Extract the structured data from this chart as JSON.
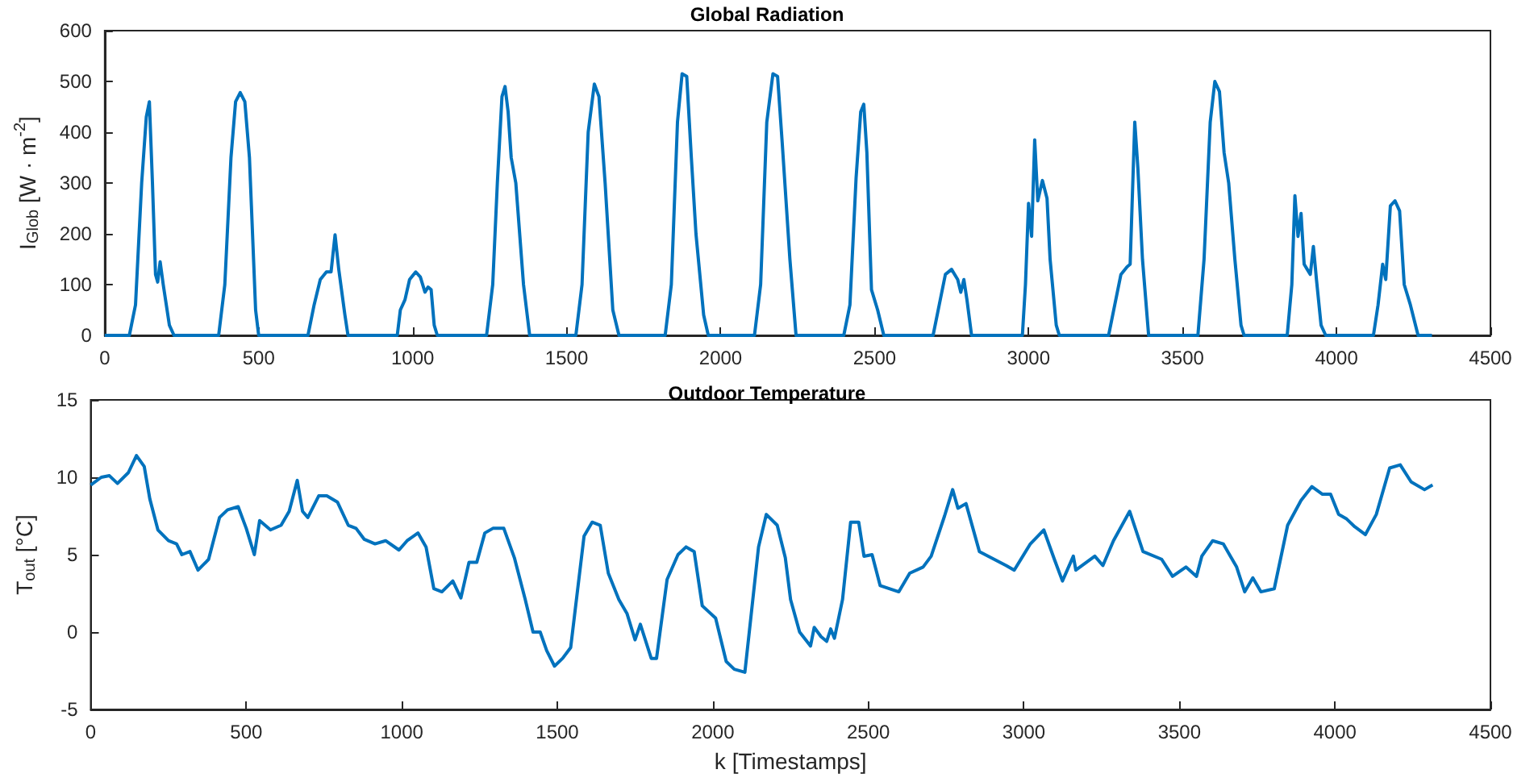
{
  "chart_data": [
    {
      "type": "line",
      "title": "Global Radiation",
      "ylabel": "I$_{Glob}$ [W · m$^{-2}$]",
      "xlim": [
        0,
        4500
      ],
      "xticks": [
        0,
        500,
        1000,
        1500,
        2000,
        2500,
        3000,
        3500,
        4000,
        4500
      ],
      "ylim": [
        0,
        600
      ],
      "yticks": [
        0,
        100,
        200,
        300,
        400,
        500,
        600
      ],
      "series": [
        {
          "color": "#0072bd",
          "x": [
            0,
            80,
            100,
            120,
            135,
            145,
            155,
            165,
            172,
            180,
            190,
            210,
            225,
            370,
            390,
            410,
            425,
            440,
            455,
            470,
            490,
            500,
            660,
            680,
            700,
            720,
            735,
            748,
            760,
            780,
            790,
            950,
            960,
            975,
            990,
            1010,
            1025,
            1040,
            1050,
            1060,
            1070,
            1080,
            1240,
            1260,
            1275,
            1290,
            1300,
            1310,
            1320,
            1335,
            1360,
            1380,
            1530,
            1550,
            1570,
            1590,
            1605,
            1625,
            1650,
            1670,
            1820,
            1840,
            1860,
            1875,
            1890,
            1905,
            1920,
            1945,
            1960,
            2110,
            2130,
            2150,
            2170,
            2185,
            2200,
            2225,
            2245,
            2400,
            2420,
            2440,
            2455,
            2465,
            2475,
            2490,
            2510,
            2530,
            2690,
            2710,
            2730,
            2750,
            2770,
            2780,
            2790,
            2800,
            2815,
            2980,
            2990,
            3000,
            3010,
            3020,
            3030,
            3045,
            3060,
            3070,
            3090,
            3100,
            3260,
            3280,
            3300,
            3320,
            3330,
            3345,
            3355,
            3370,
            3390,
            3550,
            3570,
            3590,
            3605,
            3620,
            3635,
            3650,
            3670,
            3690,
            3700,
            3840,
            3855,
            3865,
            3875,
            3885,
            3895,
            3905,
            3915,
            3925,
            3935,
            3950,
            3965,
            4120,
            4135,
            4150,
            4160,
            4175,
            4190,
            4205,
            4220,
            4240,
            4265,
            4310
          ],
          "values": [
            0,
            0,
            60,
            300,
            430,
            460,
            300,
            120,
            105,
            145,
            100,
            20,
            0,
            0,
            100,
            350,
            460,
            478,
            460,
            350,
            50,
            0,
            0,
            60,
            110,
            125,
            125,
            198,
            130,
            40,
            0,
            0,
            50,
            70,
            110,
            125,
            115,
            85,
            95,
            90,
            20,
            0,
            0,
            100,
            300,
            470,
            490,
            440,
            350,
            300,
            100,
            0,
            0,
            100,
            400,
            495,
            470,
            300,
            50,
            0,
            0,
            100,
            420,
            515,
            510,
            350,
            200,
            40,
            0,
            0,
            100,
            420,
            515,
            510,
            380,
            150,
            0,
            0,
            60,
            310,
            440,
            455,
            360,
            90,
            50,
            0,
            0,
            60,
            120,
            130,
            110,
            85,
            110,
            70,
            0,
            0,
            100,
            260,
            195,
            385,
            265,
            305,
            270,
            150,
            20,
            0,
            0,
            60,
            120,
            135,
            140,
            420,
            330,
            150,
            0,
            0,
            150,
            420,
            500,
            480,
            360,
            300,
            150,
            20,
            0,
            0,
            100,
            275,
            195,
            240,
            140,
            130,
            120,
            175,
            110,
            20,
            0,
            0,
            60,
            140,
            110,
            255,
            265,
            245,
            100,
            60,
            0,
            0
          ]
        }
      ]
    },
    {
      "type": "line",
      "title": "Outdoor Temperature",
      "ylabel": "T$_{out}$ [°C]",
      "xlabel": "k [Timestamps]",
      "xlim": [
        0,
        4500
      ],
      "xticks": [
        0,
        500,
        1000,
        1500,
        2000,
        2500,
        3000,
        3500,
        4000,
        4500
      ],
      "ylim": [
        -5,
        15
      ],
      "yticks": [
        -5,
        0,
        5,
        10,
        15
      ],
      "series": [
        {
          "color": "#0072bd",
          "x": [
            0,
            34,
            60,
            86,
            121,
            147,
            172,
            190,
            216,
            250,
            276,
            293,
            319,
            345,
            379,
            414,
            440,
            474,
            500,
            526,
            543,
            578,
            612,
            638,
            664,
            681,
            698,
            733,
            759,
            793,
            828,
            853,
            879,
            914,
            948,
            991,
            1017,
            1052,
            1078,
            1103,
            1129,
            1164,
            1190,
            1216,
            1241,
            1267,
            1293,
            1328,
            1362,
            1397,
            1422,
            1445,
            1466,
            1491,
            1517,
            1543,
            1586,
            1612,
            1638,
            1664,
            1698,
            1724,
            1750,
            1767,
            1802,
            1819,
            1853,
            1888,
            1914,
            1940,
            1966,
            2009,
            2043,
            2069,
            2103,
            2121,
            2147,
            2172,
            2207,
            2233,
            2250,
            2279,
            2314,
            2326,
            2348,
            2366,
            2379,
            2391,
            2417,
            2443,
            2469,
            2486,
            2512,
            2538,
            2598,
            2633,
            2676,
            2702,
            2745,
            2771,
            2788,
            2814,
            2857,
            2943,
            2969,
            3021,
            3064,
            3098,
            3124,
            3159,
            3167,
            3228,
            3254,
            3288,
            3340,
            3383,
            3443,
            3478,
            3521,
            3555,
            3572,
            3607,
            3641,
            3684,
            3710,
            3736,
            3762,
            3805,
            3848,
            3891,
            3926,
            3960,
            3986,
            4012,
            4038,
            4064,
            4098,
            4133,
            4176,
            4210,
            4245,
            4288,
            4314
          ],
          "values": [
            9.5,
            10,
            10.1,
            9.6,
            10.3,
            11.4,
            10.7,
            8.6,
            6.6,
            5.9,
            5.7,
            5,
            5.2,
            4,
            4.7,
            7.4,
            7.9,
            8.1,
            6.7,
            5,
            7.2,
            6.6,
            6.9,
            7.8,
            9.8,
            7.8,
            7.4,
            8.8,
            8.8,
            8.4,
            6.9,
            6.7,
            6,
            5.7,
            5.9,
            5.3,
            5.9,
            6.4,
            5.5,
            2.8,
            2.6,
            3.3,
            2.2,
            4.5,
            4.5,
            6.4,
            6.7,
            6.7,
            4.8,
            2.1,
            0,
            0,
            -1.2,
            -2.2,
            -1.7,
            -1,
            6.2,
            7.1,
            6.9,
            3.8,
            2.1,
            1.2,
            -0.5,
            0.5,
            -1.7,
            -1.7,
            3.4,
            5,
            5.5,
            5.2,
            1.7,
            0.9,
            -1.9,
            -2.4,
            -2.6,
            0.7,
            5.5,
            7.6,
            6.9,
            4.8,
            2.1,
            0,
            -0.9,
            0.3,
            -0.3,
            -0.6,
            0.2,
            -0.4,
            2.1,
            7.1,
            7.1,
            4.9,
            5,
            3,
            2.6,
            3.8,
            4.2,
            4.9,
            7.5,
            9.2,
            8,
            8.3,
            5.2,
            4.3,
            4,
            5.7,
            6.6,
            4.7,
            3.3,
            4.9,
            4,
            4.9,
            4.3,
            5.9,
            7.8,
            5.2,
            4.7,
            3.6,
            4.2,
            3.6,
            4.9,
            5.9,
            5.7,
            4.2,
            2.6,
            3.5,
            2.6,
            2.8,
            6.9,
            8.5,
            9.4,
            8.9,
            8.9,
            7.6,
            7.3,
            6.8,
            6.3,
            7.6,
            10.6,
            10.8,
            9.7,
            9.2,
            9.5
          ]
        }
      ]
    }
  ]
}
